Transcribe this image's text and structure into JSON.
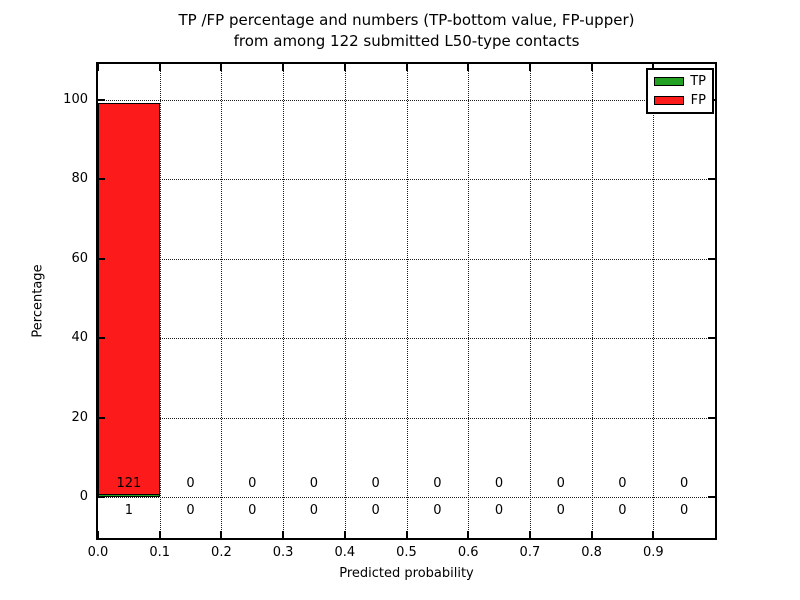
{
  "title": {
    "line1": "TP /FP percentage and numbers (TP-bottom value, FP-upper)",
    "line2": "from among 122 submitted L50-type contacts"
  },
  "axes": {
    "xlabel": "Predicted probability",
    "ylabel": "Percentage",
    "x_tick_labels": [
      "0.0",
      "0.1",
      "0.2",
      "0.3",
      "0.4",
      "0.5",
      "0.6",
      "0.7",
      "0.8",
      "0.9"
    ],
    "y_tick_labels": [
      "0",
      "20",
      "40",
      "60",
      "80",
      "100"
    ]
  },
  "legend": {
    "items": [
      {
        "label": "TP",
        "color": "#22a022"
      },
      {
        "label": "FP",
        "color": "#fc1a1a"
      }
    ],
    "position": "upper right"
  },
  "chart_data": {
    "type": "bar",
    "title": "TP /FP percentage and numbers (TP-bottom value, FP-upper) from among 122 submitted L50-type contacts",
    "xlabel": "Predicted probability",
    "ylabel": "Percentage",
    "total_contacts": 122,
    "bin_width": 0.1,
    "categories": [
      "0.0",
      "0.1",
      "0.2",
      "0.3",
      "0.4",
      "0.5",
      "0.6",
      "0.7",
      "0.8",
      "0.9"
    ],
    "series": [
      {
        "name": "TP",
        "color": "#22a022",
        "counts": [
          1,
          0,
          0,
          0,
          0,
          0,
          0,
          0,
          0,
          0
        ],
        "percentages": [
          0.82,
          0,
          0,
          0,
          0,
          0,
          0,
          0,
          0,
          0
        ]
      },
      {
        "name": "FP",
        "color": "#fc1a1a",
        "counts": [
          121,
          0,
          0,
          0,
          0,
          0,
          0,
          0,
          0,
          0
        ],
        "percentages": [
          99.18,
          0,
          0,
          0,
          0,
          0,
          0,
          0,
          0,
          0
        ]
      }
    ],
    "count_label_rows": {
      "upper_is": "FP",
      "lower_is": "TP"
    },
    "xlim": [
      0.0,
      1.0
    ],
    "ylim": [
      -10.5,
      110
    ],
    "y_ticks": [
      0,
      20,
      40,
      60,
      80,
      100
    ],
    "grid": true,
    "legend_position": "upper right"
  }
}
